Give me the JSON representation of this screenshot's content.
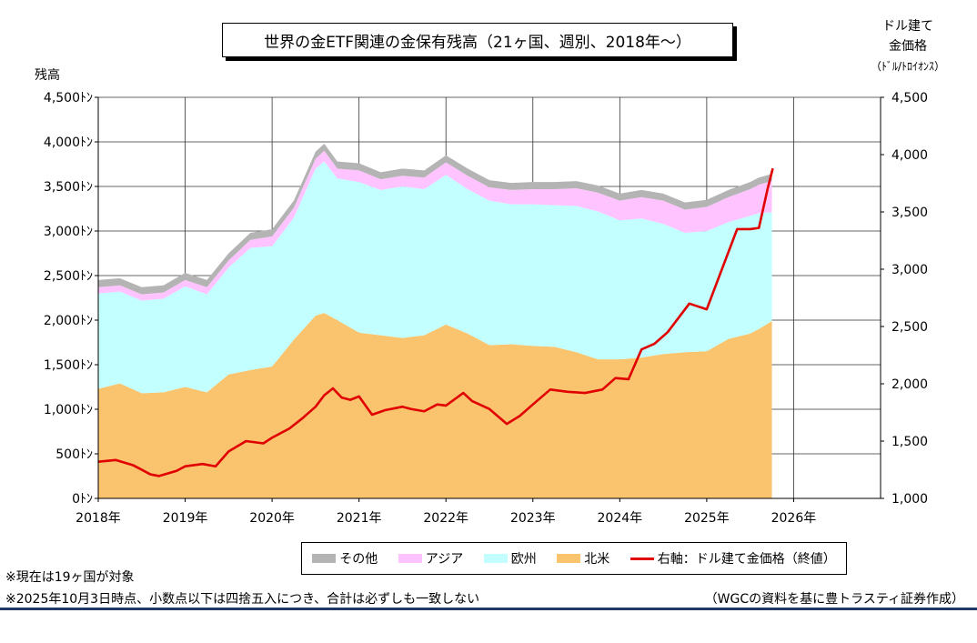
{
  "title": "世界の金ETF関連の金保有残高（21ヶ国、週別、2018年～）",
  "y_left_label": "残高",
  "y_right_label_line1": "ドル建て",
  "y_right_label_line2": "金価格",
  "y_right_unit": "（ﾄﾞﾙ/ﾄﾛｲｵﾝｽ）",
  "notes": [
    "※現在は19ヶ国が対象",
    "※2025年10月3日時点、小数点以下は四捨五入につき、合計は必ずしも一致しない"
  ],
  "source": "（WGCの資料を基に豊トラスティ証券作成）",
  "legend": [
    {
      "label": "その他",
      "color": "#b4b4b4",
      "kind": "area"
    },
    {
      "label": "アジア",
      "color": "#ffc4ff",
      "kind": "area"
    },
    {
      "label": "欧州",
      "color": "#c4ffff",
      "kind": "area"
    },
    {
      "label": "北米",
      "color": "#fac46e",
      "kind": "area"
    },
    {
      "label": "右軸：ドル建て金価格（終値）",
      "color": "#e00000",
      "kind": "line"
    }
  ],
  "chart_data": {
    "type": "area",
    "x_ticks": [
      "2018年",
      "2019年",
      "2020年",
      "2021年",
      "2022年",
      "2023年",
      "2024年",
      "2025年",
      "2026年"
    ],
    "x_range": [
      2018,
      2027
    ],
    "y_left": {
      "range": [
        0,
        4500
      ],
      "ticks": [
        "0ﾄﾝ",
        "500ﾄﾝ",
        "1,000ﾄﾝ",
        "1,500ﾄﾝ",
        "2,000ﾄﾝ",
        "2,500ﾄﾝ",
        "3,000ﾄﾝ",
        "3,500ﾄﾝ",
        "4,000ﾄﾝ",
        "4,500ﾄﾝ"
      ]
    },
    "y_right": {
      "range": [
        1000,
        4500
      ],
      "ticks": [
        "1,000",
        "1,500",
        "2,000",
        "2,500",
        "3,000",
        "3,500",
        "4,000",
        "4,500"
      ]
    },
    "grid": true,
    "x": [
      2018.0,
      2018.25,
      2018.5,
      2018.75,
      2019.0,
      2019.25,
      2019.5,
      2019.75,
      2020.0,
      2020.25,
      2020.5,
      2020.6,
      2020.75,
      2021.0,
      2021.25,
      2021.5,
      2021.75,
      2022.0,
      2022.25,
      2022.5,
      2022.75,
      2023.0,
      2023.25,
      2023.5,
      2023.75,
      2024.0,
      2024.25,
      2024.5,
      2024.75,
      2025.0,
      2025.25,
      2025.5,
      2025.6,
      2025.75
    ],
    "stacked_series": [
      {
        "name": "北米",
        "color": "#fac46e",
        "values": [
          1230,
          1290,
          1180,
          1190,
          1250,
          1190,
          1390,
          1440,
          1480,
          1780,
          2050,
          2080,
          2000,
          1860,
          1830,
          1800,
          1830,
          1950,
          1850,
          1720,
          1730,
          1710,
          1700,
          1640,
          1560,
          1560,
          1580,
          1620,
          1640,
          1650,
          1790,
          1850,
          1900,
          1990
        ]
      },
      {
        "name": "欧州",
        "color": "#c4ffff",
        "values": [
          1070,
          1030,
          1040,
          1050,
          1130,
          1100,
          1200,
          1370,
          1350,
          1370,
          1650,
          1700,
          1590,
          1690,
          1630,
          1700,
          1640,
          1680,
          1620,
          1620,
          1570,
          1590,
          1590,
          1640,
          1660,
          1560,
          1560,
          1460,
          1340,
          1350,
          1310,
          1320,
          1300,
          1220
        ]
      },
      {
        "name": "アジア",
        "color": "#ffc4ff",
        "values": [
          70,
          70,
          70,
          70,
          70,
          80,
          80,
          90,
          110,
          110,
          110,
          120,
          110,
          130,
          120,
          120,
          130,
          140,
          150,
          150,
          160,
          170,
          180,
          200,
          210,
          220,
          240,
          260,
          260,
          270,
          280,
          300,
          320,
          350
        ]
      },
      {
        "name": "その他",
        "color": "#b4b4b4",
        "values": [
          80,
          80,
          80,
          80,
          80,
          80,
          80,
          80,
          80,
          80,
          80,
          80,
          80,
          80,
          80,
          80,
          80,
          80,
          80,
          80,
          80,
          80,
          80,
          80,
          80,
          80,
          80,
          80,
          80,
          80,
          80,
          80,
          80,
          80
        ]
      }
    ],
    "line_series": {
      "name": "右軸：ドル建て金価格（終値）",
      "axis": "right",
      "color": "#e00000",
      "x": [
        2018.0,
        2018.2,
        2018.4,
        2018.6,
        2018.7,
        2018.9,
        2019.0,
        2019.2,
        2019.35,
        2019.5,
        2019.7,
        2019.9,
        2020.0,
        2020.2,
        2020.35,
        2020.5,
        2020.6,
        2020.7,
        2020.8,
        2020.9,
        2021.0,
        2021.15,
        2021.3,
        2021.5,
        2021.6,
        2021.75,
        2021.9,
        2022.0,
        2022.2,
        2022.3,
        2022.5,
        2022.7,
        2022.85,
        2023.0,
        2023.2,
        2023.4,
        2023.6,
        2023.8,
        2023.95,
        2024.1,
        2024.25,
        2024.4,
        2024.55,
        2024.8,
        2025.0,
        2025.2,
        2025.35,
        2025.5,
        2025.6,
        2025.7,
        2025.76
      ],
      "values": [
        1320,
        1335,
        1290,
        1210,
        1195,
        1240,
        1280,
        1300,
        1280,
        1410,
        1500,
        1480,
        1530,
        1610,
        1700,
        1800,
        1900,
        1960,
        1880,
        1860,
        1890,
        1730,
        1770,
        1800,
        1780,
        1760,
        1820,
        1810,
        1920,
        1850,
        1780,
        1650,
        1720,
        1820,
        1950,
        1930,
        1920,
        1950,
        2050,
        2040,
        2300,
        2350,
        2450,
        2700,
        2650,
        3050,
        3350,
        3350,
        3360,
        3700,
        3880
      ]
    }
  }
}
